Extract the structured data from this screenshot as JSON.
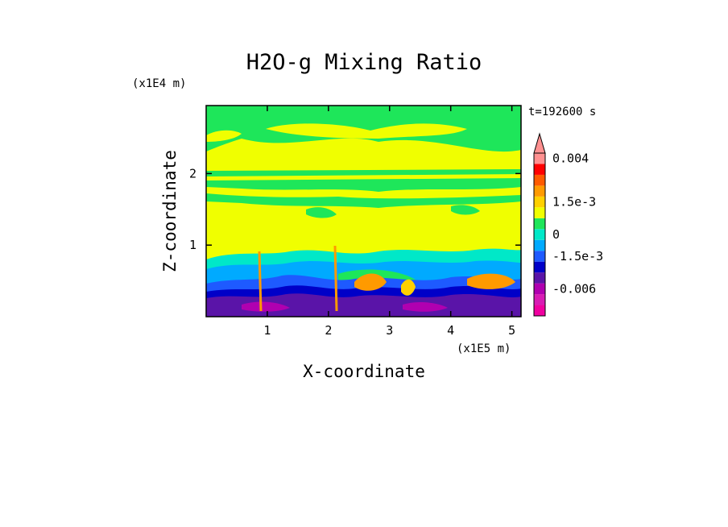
{
  "chart_data": {
    "type": "heatmap",
    "title": "H2O-g Mixing Ratio",
    "xlabel": "X-coordinate",
    "ylabel": "Z-coordinate",
    "x_unit": "(x1E5 m)",
    "y_unit": "(x1E4 m)",
    "time_label": "t=192600 s",
    "xlim": [
      0,
      5.15
    ],
    "ylim": [
      0,
      2.95
    ],
    "x_ticks": [
      "1",
      "2",
      "3",
      "4",
      "5"
    ],
    "y_ticks": [
      "1",
      "2"
    ],
    "colorbar": {
      "levels": [
        {
          "value": -0.009,
          "color": "#f000a0"
        },
        {
          "value": -0.0075,
          "color": "#d81cb4"
        },
        {
          "value": -0.006,
          "color": "#b000b0"
        },
        {
          "value": -0.0045,
          "color": "#5a14a8"
        },
        {
          "value": -0.003,
          "color": "#0000c8"
        },
        {
          "value": -0.0015,
          "color": "#1e5aff"
        },
        {
          "value": -0.00075,
          "color": "#00aaff"
        },
        {
          "value": 0,
          "color": "#00e8c8"
        },
        {
          "value": 0.0005,
          "color": "#1ee65a"
        },
        {
          "value": 0.001,
          "color": "#f0ff00"
        },
        {
          "value": 0.0015,
          "color": "#ffd000"
        },
        {
          "value": 0.002,
          "color": "#ff9a00"
        },
        {
          "value": 0.0025,
          "color": "#ff5a00"
        },
        {
          "value": 0.003,
          "color": "#ff0000"
        },
        {
          "value": 0.004,
          "color": "#ff9090"
        }
      ],
      "tick_labels": [
        "0.004",
        "1.5e-3",
        "0",
        "-1.5e-3",
        "-0.006"
      ],
      "extend": "max"
    }
  }
}
